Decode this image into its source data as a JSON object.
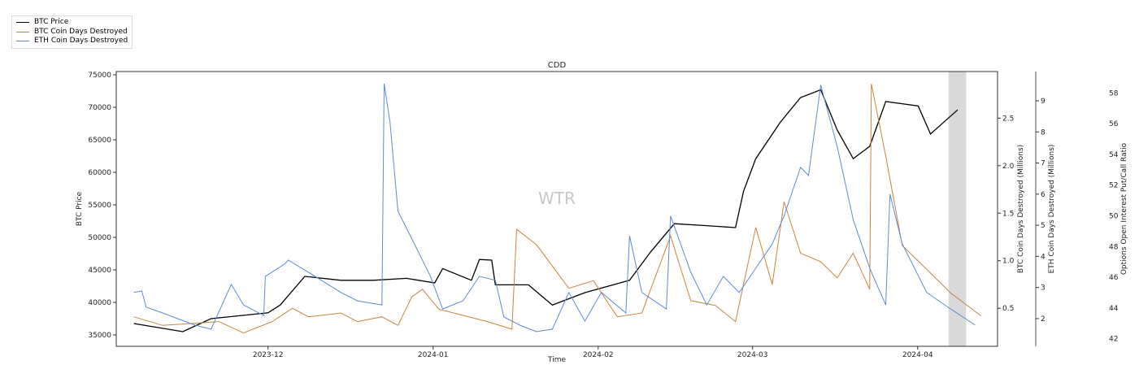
{
  "chart_data": {
    "type": "line",
    "title": "CDD",
    "watermark": "WTR",
    "xlabel": "Time",
    "x_unit": "days since 2023-12-01",
    "xlim": [
      -28.5,
      137
    ],
    "x_ticks": [
      {
        "value": 0,
        "label": "2023-12"
      },
      {
        "value": 31,
        "label": "2024-01"
      },
      {
        "value": 62,
        "label": "2024-02"
      },
      {
        "value": 91,
        "label": "2024-03"
      },
      {
        "value": 122,
        "label": "2024-04"
      }
    ],
    "shaded_region": [
      127.8,
      131.1
    ],
    "legend": {
      "placement": "top-left-outside",
      "entries": [
        "BTC Price",
        "BTC Coin Days Destroyed",
        "ETH Coin Days Destroyed"
      ]
    },
    "axes": {
      "btc_price": {
        "label": "BTC Price",
        "side": "left",
        "ylim": [
          33250,
          75500
        ],
        "ticks": [
          35000,
          40000,
          45000,
          50000,
          55000,
          60000,
          65000,
          70000,
          75000
        ]
      },
      "btc_cdd": {
        "label": "BTC Coin Days Destroyed (Millions)",
        "side": "right",
        "ylim": [
          0.1,
          2.99
        ],
        "ticks": [
          "0.5",
          "1.0",
          "1.5",
          "2.0",
          "2.5"
        ]
      },
      "eth_cdd": {
        "label": "ETH Coin Days Destroyed (Millions)",
        "side": "right-offset",
        "ylim": [
          1.11,
          9.94
        ],
        "ticks": [
          "2",
          "3",
          "4",
          "5",
          "6",
          "7",
          "8",
          "9"
        ]
      },
      "put_call": {
        "label": "Options Open Interest Put/Call Ratio",
        "side": "right-offset-2",
        "ylim": [
          41.5,
          59.4
        ],
        "ticks": [
          "42",
          "44",
          "46",
          "48",
          "50",
          "52",
          "54",
          "56",
          "58"
        ]
      }
    },
    "series": [
      {
        "name": "BTC Price",
        "axis": "btc_price",
        "color": "#000000",
        "x": [
          -25.2,
          -16,
          -10.7,
          0,
          2.3,
          6.9,
          13.7,
          19.8,
          26,
          31.3,
          32.8,
          38.2,
          39.7,
          42,
          42.7,
          48.9,
          53.4,
          59.5,
          67.9,
          71.8,
          76.3,
          82.4,
          87.8,
          89.3,
          91.6,
          96.2,
          100,
          103.8,
          106.9,
          109.9,
          113,
          116,
          122.1,
          124.4,
          129.5
        ],
        "y": [
          36750,
          35500,
          37500,
          38400,
          39600,
          44000,
          43400,
          43400,
          43700,
          43000,
          45200,
          43400,
          46600,
          46500,
          42700,
          42700,
          39600,
          41500,
          43400,
          47700,
          52100,
          51800,
          51500,
          57100,
          62100,
          67700,
          71500,
          72700,
          66500,
          62100,
          64000,
          70900,
          70200,
          65900,
          69600
        ]
      },
      {
        "name": "BTC Coin Days Destroyed",
        "axis": "btc_cdd",
        "color": "#c8853a",
        "x": [
          -25.2,
          -19.8,
          -9.2,
          -4.6,
          0.8,
          4.6,
          7.6,
          13.7,
          16.8,
          21.4,
          24.4,
          27,
          29,
          32.1,
          41.2,
          45.8,
          46.7,
          50.4,
          56.5,
          61.1,
          65.6,
          70.2,
          75.6,
          79.4,
          84,
          87.8,
          91.6,
          94.7,
          96.9,
          100,
          103.8,
          106.9,
          109.9,
          113,
          113.3,
          116,
          119.1,
          123.7,
          128.2,
          133.9
        ],
        "y": [
          0.41,
          0.32,
          0.36,
          0.24,
          0.36,
          0.5,
          0.41,
          0.45,
          0.36,
          0.41,
          0.32,
          0.62,
          0.7,
          0.49,
          0.36,
          0.28,
          1.33,
          1.17,
          0.71,
          0.79,
          0.41,
          0.45,
          1.26,
          0.58,
          0.53,
          0.36,
          1.35,
          0.75,
          1.62,
          1.08,
          0.99,
          0.82,
          1.08,
          0.7,
          2.86,
          2.1,
          1.16,
          0.91,
          0.66,
          0.42
        ]
      },
      {
        "name": "ETH Coin Days Destroyed",
        "axis": "eth_cdd",
        "color": "#5b8bd6",
        "x": [
          -25.2,
          -23.7,
          -22.9,
          -19.8,
          -13.7,
          -10.7,
          -6.9,
          -4.6,
          -0.8,
          -0.5,
          3.1,
          3.8,
          7.6,
          13.7,
          16.8,
          21.4,
          21.8,
          22.9,
          24.4,
          27.5,
          30.5,
          32.8,
          36.6,
          39.7,
          42.7,
          44.3,
          47.3,
          50.4,
          53.4,
          56.5,
          59.5,
          62.6,
          67.2,
          67.9,
          70.2,
          74.8,
          75.6,
          79.4,
          82.4,
          85.5,
          88.5,
          91.6,
          94.7,
          96.9,
          100,
          101.5,
          103.8,
          106.9,
          109.9,
          113,
          116,
          116.8,
          119.1,
          123.7,
          128.2,
          132.8
        ],
        "y": [
          2.84,
          2.89,
          2.37,
          2.18,
          1.79,
          1.66,
          3.1,
          2.44,
          2.1,
          3.36,
          3.75,
          3.88,
          3.49,
          2.84,
          2.57,
          2.44,
          9.55,
          8.32,
          5.45,
          4.4,
          3.36,
          2.31,
          2.57,
          3.36,
          3.23,
          2.05,
          1.79,
          1.58,
          1.66,
          2.84,
          1.92,
          2.84,
          2.18,
          4.66,
          2.84,
          2.31,
          5.3,
          3.49,
          2.44,
          3.36,
          2.84,
          3.62,
          4.4,
          5.3,
          6.86,
          6.6,
          9.5,
          7.53,
          5.18,
          3.62,
          2.44,
          6.0,
          4.4,
          2.84,
          2.31,
          1.79
        ]
      }
    ]
  }
}
